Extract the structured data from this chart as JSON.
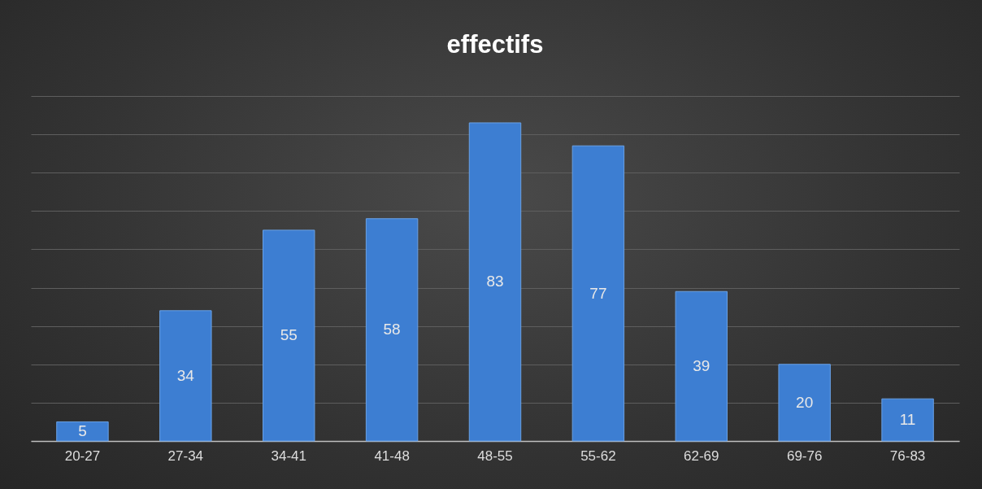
{
  "chart_data": {
    "type": "bar",
    "title": "effectifs",
    "categories": [
      "20-27",
      "27-34",
      "34-41",
      "41-48",
      "48-55",
      "55-62",
      "62-69",
      "69-76",
      "76-83"
    ],
    "values": [
      5,
      34,
      55,
      58,
      83,
      77,
      39,
      20,
      11
    ],
    "color": "#3d7ed2",
    "ylim": [
      0,
      90
    ],
    "yticks": [
      0,
      10,
      20,
      30,
      40,
      50,
      60,
      70,
      80,
      90
    ],
    "grid": "y",
    "tick_labels": "x",
    "data_labels": true
  }
}
